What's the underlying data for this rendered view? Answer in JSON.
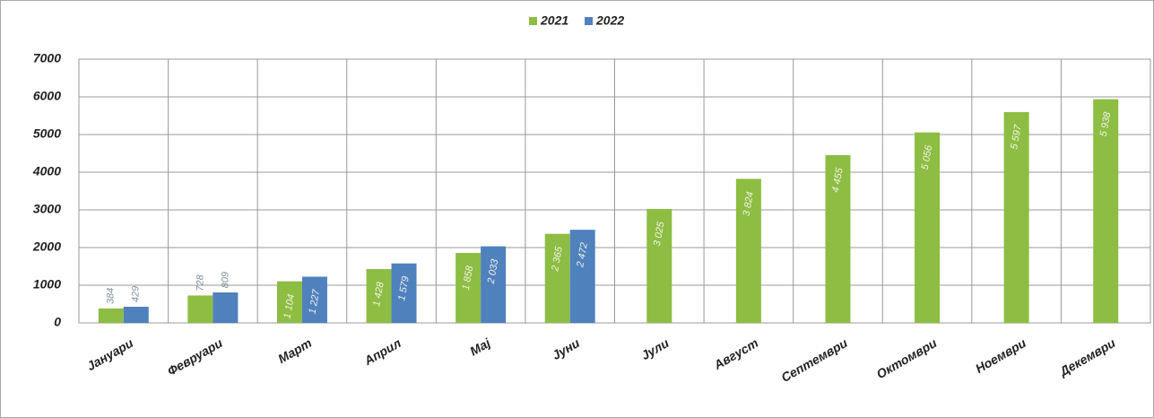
{
  "chart_data": {
    "type": "bar",
    "categories": [
      "Јануари",
      "Февруари",
      "Март",
      "Април",
      "Мај",
      "Јуни",
      "Јули",
      "Август",
      "Септември",
      "Октомври",
      "Ноември",
      "Декември"
    ],
    "series": [
      {
        "name": "2021",
        "color": "#8dbd42",
        "values": [
          384,
          728,
          1104,
          1428,
          1858,
          2365,
          3025,
          3824,
          4455,
          5056,
          5597,
          5938
        ],
        "value_labels": [
          "384",
          "728",
          "1 104",
          "1 428",
          "1 858",
          "2 365",
          "3 025",
          "3 824",
          "4 455",
          "5 056",
          "5 597",
          "5 938"
        ]
      },
      {
        "name": "2022",
        "color": "#4f81bd",
        "values": [
          429,
          809,
          1227,
          1579,
          2033,
          2472,
          null,
          null,
          null,
          null,
          null,
          null
        ],
        "value_labels": [
          "429",
          "809",
          "1 227",
          "1 579",
          "2 033",
          "2 472",
          null,
          null,
          null,
          null,
          null,
          null
        ]
      }
    ],
    "ylim": [
      0,
      7000
    ],
    "yticks": [
      0,
      1000,
      2000,
      3000,
      4000,
      5000,
      6000,
      7000
    ],
    "grid": true,
    "legend": "top"
  }
}
